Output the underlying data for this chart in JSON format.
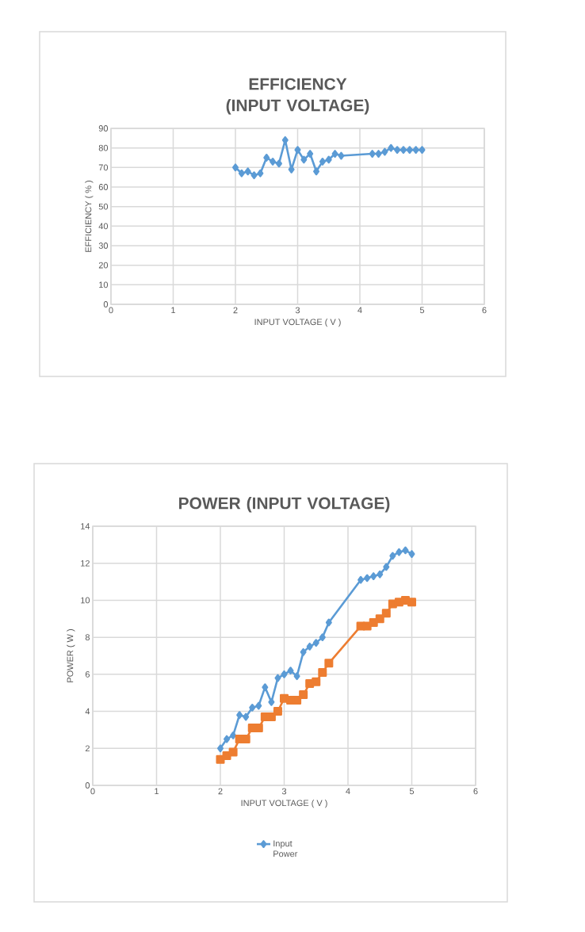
{
  "chart_data": [
    {
      "type": "line",
      "title": "EFFICIENCY (INPUT VOLTAGE)",
      "xlabel": "INPUT VOLTAGE ( V )",
      "ylabel": "EFFICIENCY ( % )",
      "x": [
        2.0,
        2.1,
        2.2,
        2.3,
        2.4,
        2.5,
        2.6,
        2.7,
        2.8,
        2.9,
        3.0,
        3.1,
        3.2,
        3.3,
        3.4,
        3.5,
        3.6,
        3.7,
        4.2,
        4.3,
        4.4,
        4.5,
        4.6,
        4.7,
        4.8,
        4.9,
        5.0
      ],
      "series": [
        {
          "color": "#5b9bd5",
          "marker": "diamond",
          "values": [
            70,
            67,
            68,
            66,
            67,
            75,
            73,
            72,
            84,
            69,
            79,
            74,
            77,
            68,
            73,
            74,
            77,
            76,
            77,
            77,
            78,
            80,
            79,
            79,
            79,
            79,
            79
          ]
        }
      ],
      "xlim": [
        0,
        6
      ],
      "xticks": [
        0,
        1,
        2,
        3,
        4,
        5,
        6
      ],
      "ylim": [
        0,
        90
      ],
      "yticks": [
        0,
        10,
        20,
        30,
        40,
        50,
        60,
        70,
        80,
        90
      ],
      "grid": true,
      "line_style": "solid"
    },
    {
      "type": "line",
      "title": "POWER (INPUT VOLTAGE)",
      "xlabel": "INPUT VOLTAGE ( V )",
      "ylabel": "POWER ( W )",
      "x": [
        2.0,
        2.1,
        2.2,
        2.3,
        2.4,
        2.5,
        2.6,
        2.7,
        2.8,
        2.9,
        3.0,
        3.1,
        3.2,
        3.3,
        3.4,
        3.5,
        3.6,
        3.7,
        4.2,
        4.3,
        4.4,
        4.5,
        4.6,
        4.7,
        4.8,
        4.9,
        5.0
      ],
      "series": [
        {
          "name": "Input Power",
          "color": "#5b9bd5",
          "marker": "diamond",
          "values": [
            2.0,
            2.5,
            2.7,
            3.8,
            3.7,
            4.2,
            4.3,
            5.3,
            4.5,
            5.8,
            6.0,
            6.2,
            5.9,
            7.2,
            7.5,
            7.7,
            8.0,
            8.8,
            11.1,
            11.2,
            11.3,
            11.4,
            11.8,
            12.4,
            12.6,
            12.7,
            12.5
          ]
        },
        {
          "color": "#ed7d31",
          "marker": "square",
          "values": [
            1.4,
            1.6,
            1.8,
            2.5,
            2.5,
            3.1,
            3.1,
            3.7,
            3.7,
            4.0,
            4.7,
            4.6,
            4.6,
            4.9,
            5.5,
            5.6,
            6.1,
            6.6,
            8.6,
            8.6,
            8.8,
            9.0,
            9.3,
            9.8,
            9.9,
            10.0,
            9.9
          ]
        }
      ],
      "xlim": [
        0,
        6
      ],
      "xticks": [
        0,
        1,
        2,
        3,
        4,
        5,
        6
      ],
      "ylim": [
        0,
        14
      ],
      "yticks": [
        0,
        2,
        4,
        6,
        8,
        10,
        12,
        14
      ],
      "grid": true,
      "legend": "bottom",
      "line_style": "solid"
    }
  ]
}
